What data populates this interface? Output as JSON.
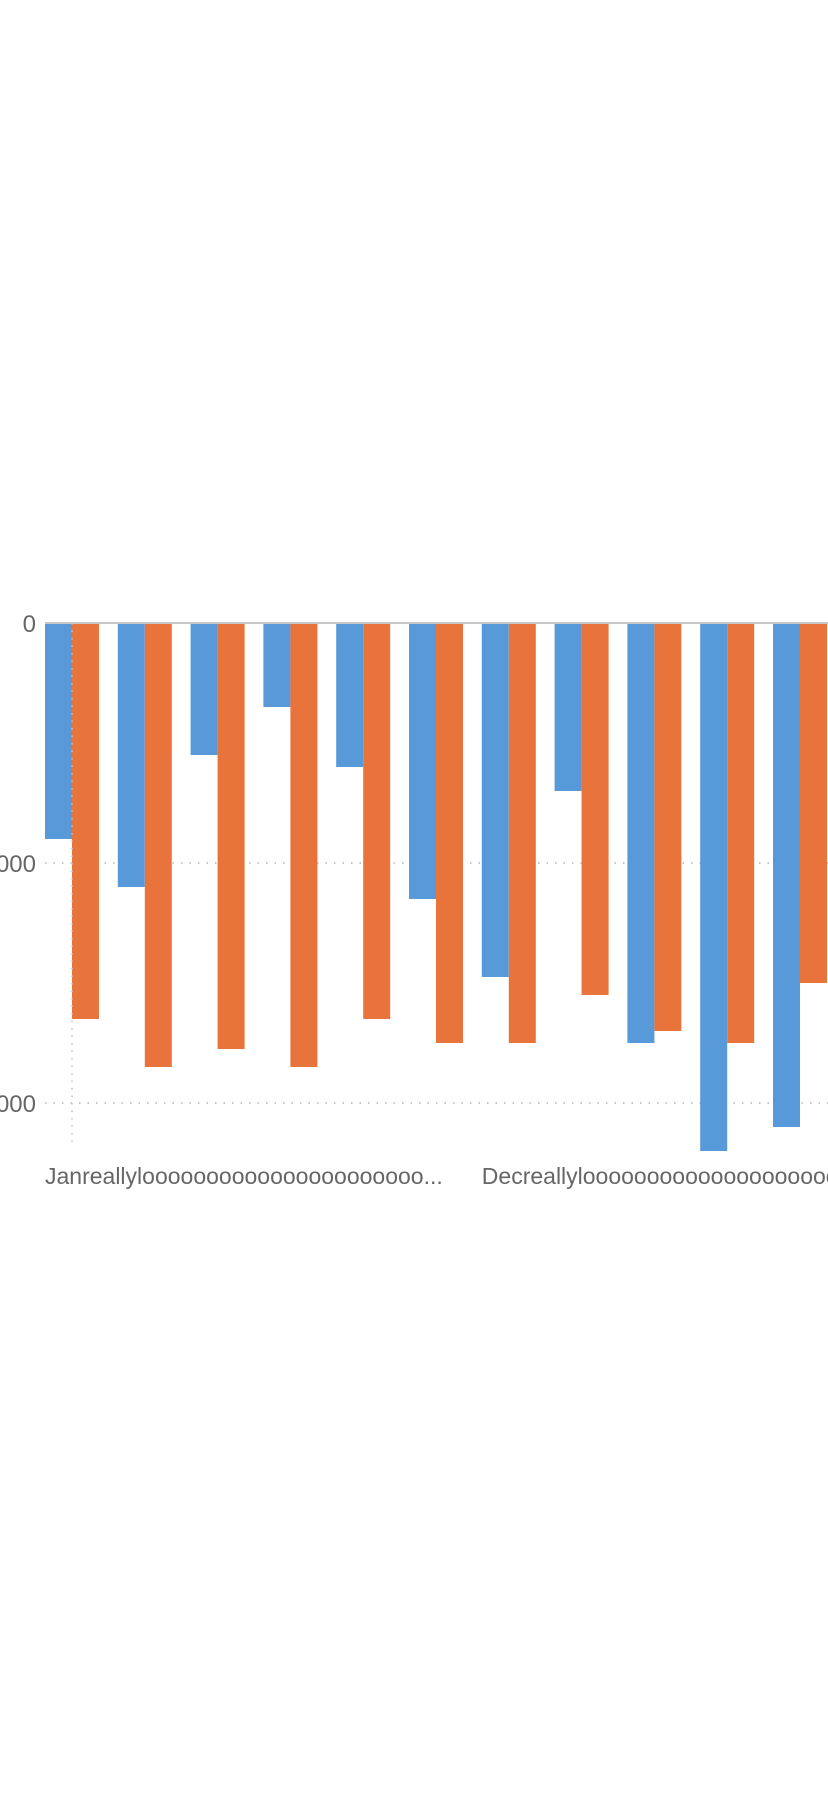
{
  "chart_data": {
    "type": "bar",
    "orientation": "vertical-negative",
    "ylim": [
      -2200,
      0
    ],
    "y_ticks": [
      {
        "value": 0,
        "label": "0"
      },
      {
        "value": -1000,
        "label": "000"
      },
      {
        "value": -2000,
        "label": "000"
      }
    ],
    "x_tick_labels": [
      {
        "index": 0,
        "label": "Janreallyloooooooooooooooooooooo..."
      },
      {
        "index": 6,
        "label": "Decreallyloooooooooooooooooooooo"
      }
    ],
    "grid": "horizontal-dotted",
    "legend": "none",
    "series": [
      {
        "color": "#5899DA",
        "values": [
          -900,
          -1100,
          -550,
          -350,
          -600,
          -1150,
          -1475,
          -700,
          -1750,
          -2200,
          -2100
        ]
      },
      {
        "color": "#E8743B",
        "values": [
          -1650,
          -1850,
          -1775,
          -1850,
          -1650,
          -1750,
          -1750,
          -1550,
          -1700,
          -1750,
          -1500
        ]
      }
    ]
  }
}
